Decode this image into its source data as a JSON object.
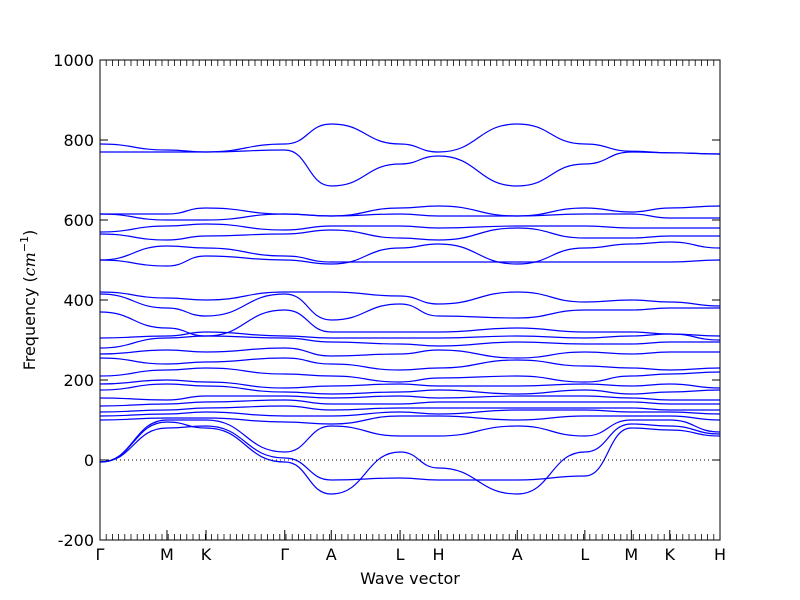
{
  "chart_data": {
    "type": "line",
    "title": "",
    "xlabel": "Wave vector",
    "ylabel": "Frequency ($cm^{-1}$)",
    "ylabel_parts": {
      "text": "Frequency (",
      "unit_base": "cm",
      "unit_exp": "−1",
      "close": ")"
    },
    "ylim": [
      -200,
      1000
    ],
    "yticks": [
      -200,
      0,
      200,
      400,
      600,
      800,
      1000
    ],
    "grid": false,
    "line_color": "#0000ff",
    "zero_line_color": "#000000",
    "x_ticks": [
      {
        "label": "Γ",
        "x": 0
      },
      {
        "label": "M",
        "x": 0.108
      },
      {
        "label": "K",
        "x": 0.171
      },
      {
        "label": "Γ",
        "x": 0.298
      },
      {
        "label": "A",
        "x": 0.373
      },
      {
        "label": "L",
        "x": 0.484
      },
      {
        "label": "H",
        "x": 0.546
      },
      {
        "label": "A",
        "x": 0.673
      },
      {
        "label": "L",
        "x": 0.782
      },
      {
        "label": "M",
        "x": 0.857
      },
      {
        "label": "K",
        "x": 0.919
      },
      {
        "label": "H",
        "x": 1.0
      }
    ],
    "x": [
      0,
      0.108,
      0.171,
      0.298,
      0.373,
      0.484,
      0.546,
      0.673,
      0.782,
      0.857,
      0.919,
      1.0
    ],
    "series": [
      {
        "values": [
          -5,
          95,
          80,
          -5,
          -85,
          20,
          -20,
          -85,
          20,
          90,
          85,
          65
        ]
      },
      {
        "values": [
          -5,
          80,
          85,
          5,
          -50,
          -45,
          -50,
          -50,
          -40,
          80,
          75,
          60
        ]
      },
      {
        "values": [
          -5,
          100,
          100,
          20,
          85,
          60,
          60,
          85,
          60,
          100,
          100,
          70
        ]
      },
      {
        "values": [
          100,
          105,
          105,
          95,
          90,
          110,
          110,
          100,
          110,
          110,
          110,
          100
        ]
      },
      {
        "values": [
          110,
          115,
          120,
          110,
          110,
          120,
          115,
          125,
          125,
          120,
          120,
          115
        ]
      },
      {
        "values": [
          120,
          125,
          130,
          135,
          125,
          130,
          130,
          130,
          130,
          130,
          125,
          125
        ]
      },
      {
        "values": [
          135,
          140,
          145,
          150,
          140,
          140,
          145,
          145,
          145,
          145,
          140,
          140
        ]
      },
      {
        "values": [
          155,
          150,
          160,
          160,
          155,
          160,
          155,
          160,
          160,
          155,
          150,
          150
        ]
      },
      {
        "values": [
          175,
          190,
          185,
          170,
          165,
          170,
          175,
          165,
          175,
          165,
          170,
          175
        ]
      },
      {
        "values": [
          190,
          200,
          195,
          180,
          185,
          190,
          185,
          185,
          190,
          185,
          190,
          180
        ]
      },
      {
        "values": [
          210,
          225,
          230,
          215,
          210,
          195,
          205,
          210,
          195,
          210,
          215,
          220
        ]
      },
      {
        "values": [
          255,
          240,
          245,
          255,
          240,
          225,
          230,
          250,
          235,
          230,
          225,
          230
        ]
      },
      {
        "values": [
          265,
          275,
          270,
          280,
          260,
          265,
          275,
          255,
          270,
          265,
          270,
          270
        ]
      },
      {
        "values": [
          280,
          305,
          310,
          305,
          295,
          290,
          285,
          295,
          290,
          290,
          295,
          295
        ]
      },
      {
        "values": [
          305,
          310,
          320,
          310,
          305,
          305,
          305,
          310,
          305,
          310,
          315,
          310
        ]
      },
      {
        "values": [
          370,
          330,
          310,
          375,
          320,
          320,
          320,
          330,
          320,
          320,
          315,
          300
        ]
      },
      {
        "values": [
          415,
          380,
          360,
          415,
          350,
          390,
          360,
          355,
          375,
          375,
          380,
          380
        ]
      },
      {
        "values": [
          420,
          405,
          400,
          420,
          420,
          410,
          390,
          420,
          395,
          400,
          395,
          385
        ]
      },
      {
        "values": [
          500,
          485,
          510,
          500,
          490,
          530,
          540,
          490,
          530,
          540,
          545,
          530
        ]
      },
      {
        "values": [
          500,
          535,
          530,
          510,
          495,
          495,
          495,
          495,
          495,
          495,
          495,
          500
        ]
      },
      {
        "values": [
          565,
          550,
          560,
          565,
          575,
          555,
          550,
          580,
          555,
          555,
          560,
          560
        ]
      },
      {
        "values": [
          570,
          585,
          590,
          575,
          585,
          585,
          580,
          585,
          585,
          580,
          580,
          580
        ]
      },
      {
        "values": [
          615,
          600,
          600,
          615,
          610,
          615,
          610,
          610,
          615,
          615,
          605,
          605
        ]
      },
      {
        "values": [
          615,
          615,
          630,
          615,
          610,
          630,
          635,
          610,
          630,
          620,
          630,
          635
        ]
      },
      {
        "values": [
          770,
          770,
          770,
          775,
          685,
          740,
          760,
          685,
          740,
          770,
          768,
          765
        ]
      },
      {
        "values": [
          790,
          775,
          770,
          790,
          840,
          790,
          770,
          840,
          790,
          772,
          768,
          765
        ]
      }
    ]
  }
}
